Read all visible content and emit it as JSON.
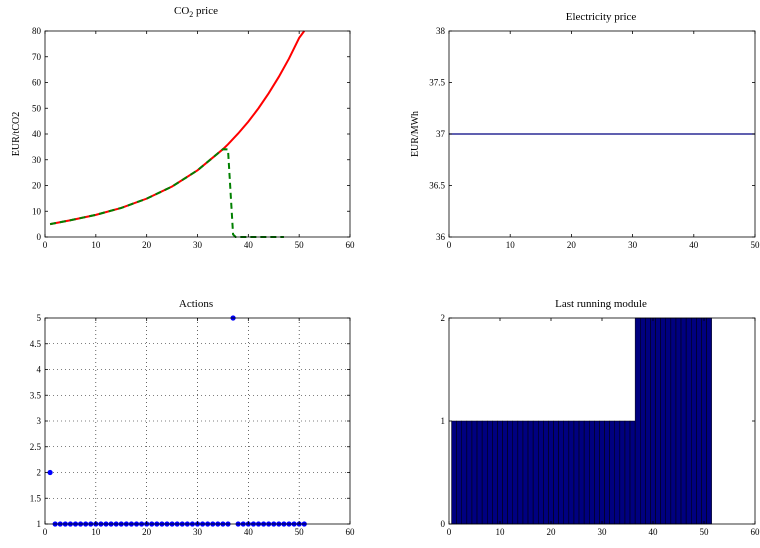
{
  "chart_data": [
    {
      "type": "line",
      "title": "price",
      "title_prefix": "CO",
      "title_subscript": "2",
      "xlabel": "",
      "ylabel": "EUR/tCO2",
      "xlim": [
        0,
        60
      ],
      "ylim": [
        0,
        80
      ],
      "xticks": [
        0,
        10,
        20,
        30,
        40,
        50,
        60
      ],
      "yticks": [
        0,
        10,
        20,
        30,
        40,
        50,
        60,
        70,
        80
      ],
      "grid": false,
      "series": [
        {
          "color": "#ff0000",
          "style": "solid",
          "x": [
            1,
            5,
            10,
            15,
            20,
            25,
            30,
            35,
            36,
            38,
            40,
            42,
            44,
            46,
            48,
            50,
            51
          ],
          "y": [
            5,
            6.5,
            8.6,
            11.3,
            14.9,
            19.6,
            25.9,
            34.1,
            36,
            40.2,
            44.8,
            50,
            55.8,
            62.2,
            69.3,
            77.3,
            80
          ]
        },
        {
          "color": "#008000",
          "style": "dashed",
          "x": [
            1,
            5,
            10,
            15,
            20,
            25,
            30,
            35,
            36,
            37,
            37.5,
            47
          ],
          "y": [
            5,
            6.5,
            8.6,
            11.3,
            14.9,
            19.6,
            25.9,
            34.1,
            34,
            1,
            0,
            0
          ]
        }
      ]
    },
    {
      "type": "line",
      "title": "Electricity price",
      "xlabel": "",
      "ylabel": "EUR/MWh",
      "xlim": [
        0,
        50
      ],
      "ylim": [
        36,
        38
      ],
      "xticks": [
        0,
        10,
        20,
        30,
        40,
        50
      ],
      "yticks": [
        36,
        36.5,
        37,
        37.5,
        38
      ],
      "grid": false,
      "series": [
        {
          "color": "#000080",
          "style": "solid",
          "x": [
            0,
            50
          ],
          "y": [
            37,
            37
          ]
        }
      ]
    },
    {
      "type": "scatter",
      "title": "Actions",
      "xlabel": "",
      "ylabel": "",
      "xlim": [
        0,
        60
      ],
      "ylim": [
        1,
        5
      ],
      "xticks": [
        0,
        10,
        20,
        30,
        40,
        50,
        60
      ],
      "yticks": [
        1,
        1.5,
        2,
        2.5,
        3,
        3.5,
        4,
        4.5,
        5
      ],
      "grid": true,
      "series": [
        {
          "color": "#0000ff",
          "x": [
            1,
            2,
            3,
            4,
            5,
            6,
            7,
            8,
            9,
            10,
            11,
            12,
            13,
            14,
            15,
            16,
            17,
            18,
            19,
            20,
            21,
            22,
            23,
            24,
            25,
            26,
            27,
            28,
            29,
            30,
            31,
            32,
            33,
            34,
            35,
            36,
            37,
            38,
            39,
            40,
            41,
            42,
            43,
            44,
            45,
            46,
            47,
            48,
            49,
            50,
            51
          ],
          "y": [
            2,
            1,
            1,
            1,
            1,
            1,
            1,
            1,
            1,
            1,
            1,
            1,
            1,
            1,
            1,
            1,
            1,
            1,
            1,
            1,
            1,
            1,
            1,
            1,
            1,
            1,
            1,
            1,
            1,
            1,
            1,
            1,
            1,
            1,
            1,
            1,
            5,
            1,
            1,
            1,
            1,
            1,
            1,
            1,
            1,
            1,
            1,
            1,
            1,
            1,
            1
          ]
        }
      ]
    },
    {
      "type": "bar",
      "title": "Last running module",
      "xlabel": "",
      "ylabel": "",
      "xlim": [
        0,
        60
      ],
      "ylim": [
        0,
        2
      ],
      "xticks": [
        0,
        10,
        20,
        30,
        40,
        50,
        60
      ],
      "yticks": [
        0,
        1,
        2
      ],
      "grid": false,
      "bar_color": "#000080",
      "bar_edge_color": "#000000",
      "x": [
        1,
        2,
        3,
        4,
        5,
        6,
        7,
        8,
        9,
        10,
        11,
        12,
        13,
        14,
        15,
        16,
        17,
        18,
        19,
        20,
        21,
        22,
        23,
        24,
        25,
        26,
        27,
        28,
        29,
        30,
        31,
        32,
        33,
        34,
        35,
        36,
        37,
        38,
        39,
        40,
        41,
        42,
        43,
        44,
        45,
        46,
        47,
        48,
        49,
        50,
        51
      ],
      "values": [
        1,
        1,
        1,
        1,
        1,
        1,
        1,
        1,
        1,
        1,
        1,
        1,
        1,
        1,
        1,
        1,
        1,
        1,
        1,
        1,
        1,
        1,
        1,
        1,
        1,
        1,
        1,
        1,
        1,
        1,
        1,
        1,
        1,
        1,
        1,
        1,
        2,
        2,
        2,
        2,
        2,
        2,
        2,
        2,
        2,
        2,
        2,
        2,
        2,
        2,
        2
      ]
    }
  ]
}
